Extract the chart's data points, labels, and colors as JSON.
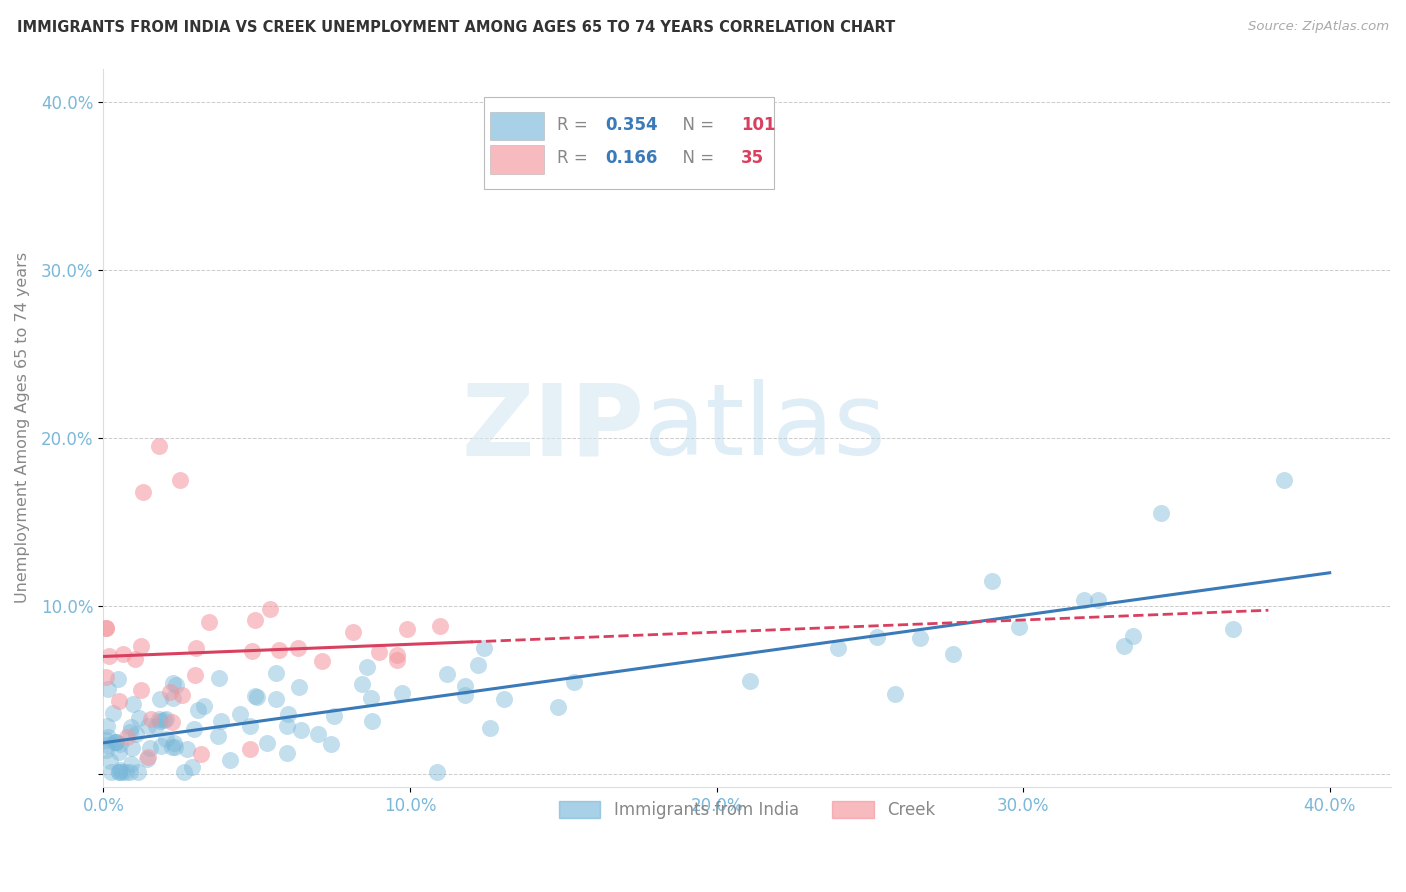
{
  "title": "IMMIGRANTS FROM INDIA VS CREEK UNEMPLOYMENT AMONG AGES 65 TO 74 YEARS CORRELATION CHART",
  "source": "Source: ZipAtlas.com",
  "ylabel": "Unemployment Among Ages 65 to 74 years",
  "xlim": [
    0.0,
    0.42
  ],
  "ylim": [
    -0.008,
    0.42
  ],
  "xticks": [
    0.0,
    0.1,
    0.2,
    0.3,
    0.4
  ],
  "yticks": [
    0.0,
    0.1,
    0.2,
    0.3,
    0.4
  ],
  "legend_labels": [
    "Immigrants from India",
    "Creek"
  ],
  "R_india": 0.354,
  "N_india": 101,
  "R_creek": 0.166,
  "N_creek": 35,
  "blue_color": "#7ab8d9",
  "pink_color": "#f4959d",
  "blue_line_color": "#3a7ab8",
  "pink_line_color": "#d94060",
  "watermark_ZIP": "ZIP",
  "watermark_atlas": "atlas",
  "background_color": "#ffffff",
  "grid_color": "#cccccc",
  "title_color": "#333333",
  "axis_label_color": "#888888",
  "tick_color": "#7ab8d9",
  "legend_r_val_color": "#3a7ab8",
  "legend_n_val_color": "#d94060"
}
